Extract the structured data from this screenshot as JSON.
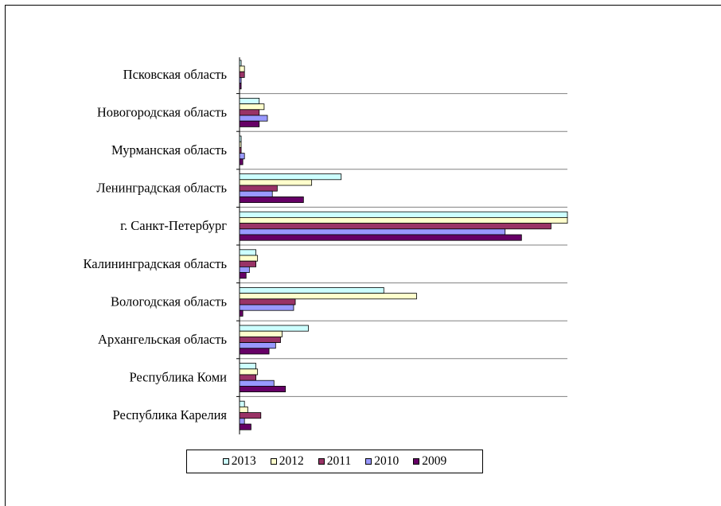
{
  "chart_data": {
    "type": "bar",
    "orientation": "horizontal",
    "categories": [
      "Псковская область",
      "Новогородская область",
      "Мурманская область",
      "Ленинградская область",
      "г. Санкт-Петербург",
      "Калининградская область",
      "Вологодская область",
      "Архангельская область",
      "Республика Коми",
      "Республика Карелия"
    ],
    "series": [
      {
        "name": "2013",
        "color": "#ccffff",
        "values": [
          0.5,
          6,
          0.5,
          31,
          100,
          5,
          44,
          21,
          5,
          1.5
        ]
      },
      {
        "name": "2012",
        "color": "#ffffcc",
        "values": [
          1.5,
          7.5,
          0.5,
          22,
          100,
          5.5,
          54,
          13,
          5.5,
          2.5
        ]
      },
      {
        "name": "2011",
        "color": "#993366",
        "values": [
          1.5,
          6,
          0.5,
          11.5,
          95,
          5,
          17,
          12.5,
          5,
          6.5
        ]
      },
      {
        "name": "2010",
        "color": "#9999ff",
        "values": [
          0.5,
          8.5,
          1.5,
          10,
          81,
          3,
          16.5,
          11,
          10.5,
          1.5
        ]
      },
      {
        "name": "2009",
        "color": "#660066",
        "values": [
          0.5,
          6,
          1,
          19.5,
          86,
          2,
          1,
          9,
          14,
          3.5
        ]
      }
    ],
    "title": "",
    "xlabel": "",
    "ylabel": "",
    "xlim": [
      0,
      100
    ],
    "grid": true,
    "legend_position": "bottom"
  }
}
